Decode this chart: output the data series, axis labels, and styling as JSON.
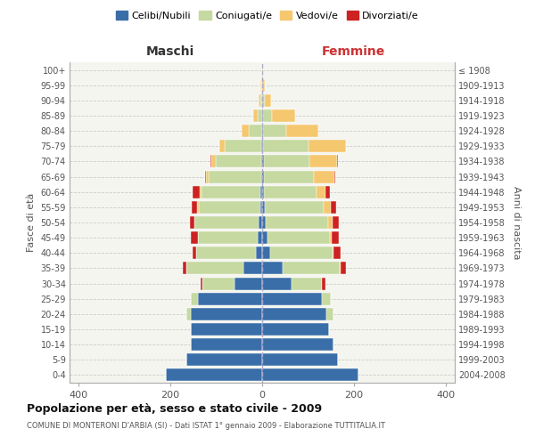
{
  "age_groups": [
    "0-4",
    "5-9",
    "10-14",
    "15-19",
    "20-24",
    "25-29",
    "30-34",
    "35-39",
    "40-44",
    "45-49",
    "50-54",
    "55-59",
    "60-64",
    "65-69",
    "70-74",
    "75-79",
    "80-84",
    "85-89",
    "90-94",
    "95-99",
    "100+"
  ],
  "birth_years": [
    "2004-2008",
    "1999-2003",
    "1994-1998",
    "1989-1993",
    "1984-1988",
    "1979-1983",
    "1974-1978",
    "1969-1973",
    "1964-1968",
    "1959-1963",
    "1954-1958",
    "1949-1953",
    "1944-1948",
    "1939-1943",
    "1934-1938",
    "1929-1933",
    "1924-1928",
    "1919-1923",
    "1914-1918",
    "1909-1913",
    "≤ 1908"
  ],
  "males": {
    "celibi": [
      210,
      165,
      155,
      155,
      155,
      140,
      60,
      40,
      14,
      10,
      7,
      4,
      3,
      2,
      2,
      2,
      0,
      0,
      0,
      0,
      0
    ],
    "coniugati": [
      0,
      0,
      0,
      0,
      10,
      15,
      70,
      125,
      130,
      130,
      140,
      135,
      130,
      115,
      100,
      80,
      30,
      10,
      3,
      1,
      0
    ],
    "vedovi": [
      0,
      0,
      0,
      0,
      0,
      0,
      0,
      0,
      0,
      0,
      1,
      2,
      3,
      5,
      8,
      12,
      15,
      10,
      5,
      2,
      0
    ],
    "divorziati": [
      0,
      0,
      0,
      0,
      0,
      0,
      5,
      8,
      8,
      15,
      10,
      12,
      15,
      2,
      2,
      0,
      0,
      0,
      0,
      0,
      0
    ]
  },
  "females": {
    "nubili": [
      210,
      165,
      155,
      145,
      140,
      130,
      65,
      45,
      18,
      12,
      8,
      5,
      3,
      3,
      3,
      2,
      2,
      2,
      0,
      0,
      0
    ],
    "coniugate": [
      0,
      0,
      0,
      0,
      15,
      20,
      65,
      125,
      135,
      135,
      135,
      130,
      115,
      110,
      100,
      100,
      50,
      20,
      5,
      0,
      0
    ],
    "vedove": [
      0,
      0,
      0,
      0,
      0,
      0,
      0,
      2,
      3,
      5,
      10,
      15,
      20,
      45,
      60,
      80,
      70,
      50,
      15,
      5,
      2
    ],
    "divorziate": [
      0,
      0,
      0,
      0,
      0,
      0,
      8,
      10,
      15,
      15,
      15,
      12,
      10,
      2,
      2,
      0,
      0,
      0,
      0,
      0,
      0
    ]
  },
  "colors": {
    "celibi": "#3a6ea8",
    "coniugati": "#c5d9a0",
    "vedovi": "#f5c76e",
    "divorziati": "#cc2222"
  },
  "xlim": 420,
  "title": "Popolazione per età, sesso e stato civile - 2009",
  "subtitle": "COMUNE DI MONTERONI D'ARBIA (SI) - Dati ISTAT 1° gennaio 2009 - Elaborazione TUTTITALIA.IT",
  "ylabel_left": "Fasce di età",
  "ylabel_right": "Anni di nascita",
  "xlabel_left": "Maschi",
  "xlabel_right": "Femmine",
  "bg_color": "#f5f5f0"
}
